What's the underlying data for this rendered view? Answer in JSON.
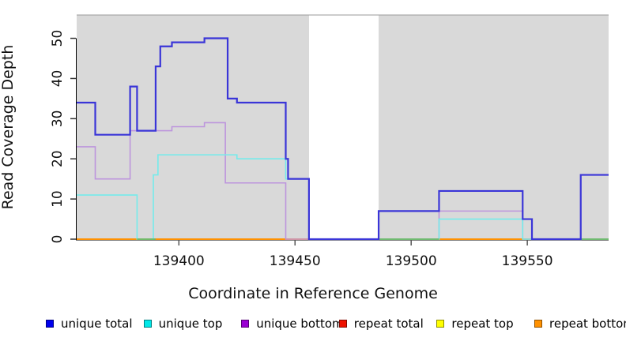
{
  "chart_data": {
    "type": "line",
    "subtype": "step-coverage",
    "title": "",
    "xlabel": "Coordinate in Reference Genome",
    "ylabel": "Read Coverage Depth",
    "xlim": [
      139356,
      139585
    ],
    "ylim": [
      0,
      56
    ],
    "x_ticks": [
      139400,
      139450,
      139500,
      139550
    ],
    "y_ticks": [
      0,
      10,
      20,
      30,
      40,
      50
    ],
    "grid": false,
    "legend_position": "bottom",
    "panel_background": "#d9d9d9",
    "gap_band": {
      "x0": 139456,
      "x1": 139486,
      "color": "#ffffff"
    },
    "series": [
      {
        "name": "unique total",
        "legend_color": "#0000ee",
        "line_color": "#3a35d8",
        "line_width": 2.2,
        "points": [
          [
            139356,
            34
          ],
          [
            139364,
            26
          ],
          [
            139379,
            38
          ],
          [
            139382,
            27
          ],
          [
            139390,
            43
          ],
          [
            139392,
            48
          ],
          [
            139397,
            49
          ],
          [
            139411,
            50
          ],
          [
            139421,
            35
          ],
          [
            139425,
            34
          ],
          [
            139446,
            20
          ],
          [
            139447,
            15
          ],
          [
            139456,
            0
          ],
          [
            139486,
            7
          ],
          [
            139512,
            12
          ],
          [
            139548,
            5
          ],
          [
            139552,
            0
          ],
          [
            139573,
            16
          ],
          [
            139585,
            16
          ]
        ]
      },
      {
        "name": "unique top",
        "legend_color": "#00e8e8",
        "line_color": "#74ebeb",
        "line_width": 1.6,
        "points": [
          [
            139356,
            11
          ],
          [
            139382,
            0
          ],
          [
            139389,
            16
          ],
          [
            139391,
            21
          ],
          [
            139425,
            20
          ],
          [
            139446,
            15
          ],
          [
            139456,
            0
          ],
          [
            139512,
            5
          ],
          [
            139548,
            0
          ],
          [
            139585,
            0
          ]
        ]
      },
      {
        "name": "unique bottom",
        "legend_color": "#9a00d3",
        "line_color": "#bd95dd",
        "line_width": 1.6,
        "points": [
          [
            139356,
            23
          ],
          [
            139364,
            15
          ],
          [
            139379,
            27
          ],
          [
            139397,
            28
          ],
          [
            139411,
            29
          ],
          [
            139420,
            14
          ],
          [
            139446,
            0
          ],
          [
            139512,
            7
          ],
          [
            139548,
            0
          ],
          [
            139585,
            0
          ]
        ]
      },
      {
        "name": "repeat total",
        "legend_color": "#ee1100",
        "line_color": "#ee1100",
        "line_width": 1.6,
        "points": [
          [
            139356,
            0
          ],
          [
            139585,
            0
          ]
        ]
      },
      {
        "name": "repeat top",
        "legend_color": "#ffff00",
        "line_color": "#ffff00",
        "line_width": 1.6,
        "points": [
          [
            139356,
            0
          ],
          [
            139585,
            0
          ]
        ]
      },
      {
        "name": "repeat bottom",
        "legend_color": "#ff9100",
        "line_color": "#ff9100",
        "line_width": 2,
        "points": [
          [
            139356,
            0
          ],
          [
            139585,
            0
          ]
        ]
      }
    ],
    "baseline_overlap_segments": [
      {
        "x0": 139382,
        "x1": 139390,
        "color": "#67b967"
      },
      {
        "x0": 139486,
        "x1": 139512,
        "color": "#67b967"
      },
      {
        "x0": 139573,
        "x1": 139585,
        "color": "#67b967"
      }
    ]
  }
}
